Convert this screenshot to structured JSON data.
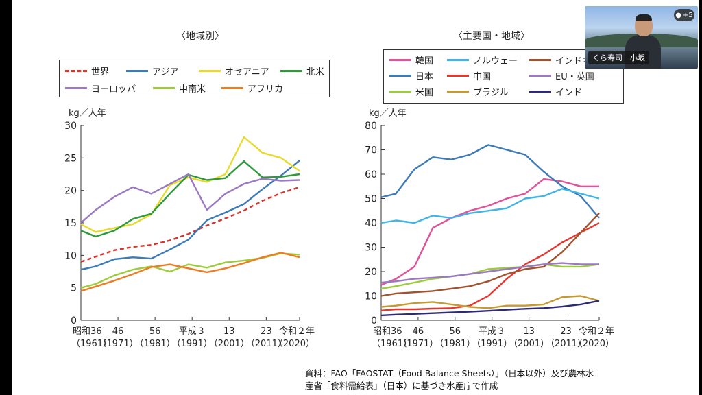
{
  "left_title": "〈地域別〉",
  "right_title": "〈主要国・地域〉",
  "ylabel": "kg／人年",
  "x_tick_top": [
    "昭和36",
    "46",
    "56",
    "平成３",
    "13",
    "23",
    "令和２年"
  ],
  "x_tick_bottom": [
    "（1961）",
    "（1971）",
    "（1981）",
    "（1991）",
    "（2001）",
    "（2011）",
    "（2020）"
  ],
  "source_line1": "資料：FAO「FAOSTAT（Food Balance Sheets）」（日本以外）及び農林水",
  "source_line2": "産省「食料需給表」（日本）に基づき水産庁で作成",
  "video": {
    "name": "くら寿司　小坂",
    "badge": "+5"
  },
  "chart_data": [
    {
      "type": "line",
      "title": "〈地域別〉",
      "ylabel": "kg／人年",
      "ylim": [
        0,
        30
      ],
      "yticks": [
        0,
        5,
        10,
        15,
        20,
        25,
        30
      ],
      "grid": false,
      "legend_placement": "top",
      "x": [
        1961,
        1965,
        1970,
        1975,
        1980,
        1985,
        1990,
        1995,
        2000,
        2005,
        2010,
        2015,
        2020
      ],
      "series": [
        {
          "name": "世界",
          "color": "#d9342b",
          "dashed": true,
          "values": [
            9.0,
            9.8,
            10.8,
            11.3,
            11.6,
            12.3,
            13.3,
            14.6,
            15.7,
            16.9,
            18.4,
            19.6,
            20.5
          ]
        },
        {
          "name": "アジア",
          "color": "#3d7ab8",
          "values": [
            7.8,
            8.3,
            9.4,
            9.7,
            9.5,
            10.9,
            12.4,
            15.4,
            16.6,
            17.9,
            20.2,
            22.3,
            24.6
          ]
        },
        {
          "name": "オセアニア",
          "color": "#e8d92a",
          "values": [
            14.8,
            13.6,
            14.2,
            14.8,
            16.3,
            20.8,
            22.0,
            21.3,
            22.5,
            28.2,
            25.8,
            25.0,
            23.0
          ]
        },
        {
          "name": "北米",
          "color": "#2e9a3a",
          "values": [
            13.8,
            12.9,
            13.8,
            15.6,
            16.4,
            19.5,
            22.4,
            21.6,
            21.9,
            24.5,
            22.0,
            22.1,
            22.5
          ]
        },
        {
          "name": "ヨーロッパ",
          "color": "#9a78c2",
          "values": [
            15.0,
            17.0,
            19.0,
            20.5,
            19.5,
            21.0,
            22.5,
            17.0,
            19.5,
            21.0,
            21.8,
            21.5,
            21.6
          ]
        },
        {
          "name": "中南米",
          "color": "#9ccc3a",
          "values": [
            5.0,
            5.6,
            6.9,
            7.8,
            8.3,
            7.5,
            8.6,
            8.1,
            8.9,
            9.2,
            9.6,
            10.3,
            10.1
          ]
        },
        {
          "name": "アフリカ",
          "color": "#ee7b22",
          "values": [
            4.5,
            5.2,
            6.1,
            7.1,
            8.2,
            8.6,
            8.0,
            7.4,
            8.0,
            8.8,
            9.7,
            10.4,
            9.7
          ]
        }
      ]
    },
    {
      "type": "line",
      "title": "〈主要国・地域〉",
      "ylabel": "kg／人年",
      "ylim": [
        0,
        80
      ],
      "yticks": [
        0,
        10,
        20,
        30,
        40,
        50,
        60,
        70,
        80
      ],
      "grid": false,
      "legend_placement": "top",
      "x": [
        1961,
        1965,
        1970,
        1975,
        1980,
        1985,
        1990,
        1995,
        2000,
        2005,
        2010,
        2015,
        2020
      ],
      "series": [
        {
          "name": "韓国",
          "color": "#e0529a",
          "values": [
            14.5,
            17.0,
            22.0,
            38.0,
            42.0,
            45.0,
            47.0,
            50.0,
            52.0,
            58.0,
            57.0,
            55.0,
            55.0
          ]
        },
        {
          "name": "日本",
          "color": "#3d7ab8",
          "values": [
            50.5,
            52.0,
            62.0,
            67.0,
            66.0,
            68.0,
            72.0,
            70.0,
            68.0,
            61.0,
            55.0,
            51.0,
            42.0
          ]
        },
        {
          "name": "米国",
          "color": "#9ccc3a",
          "values": [
            13.0,
            14.0,
            15.5,
            17.0,
            18.0,
            19.0,
            21.0,
            21.5,
            22.0,
            23.0,
            22.0,
            22.0,
            23.0
          ]
        },
        {
          "name": "ノルウェー",
          "color": "#41b4e6",
          "values": [
            40.0,
            41.0,
            40.0,
            43.0,
            42.0,
            44.0,
            45.0,
            46.0,
            50.0,
            51.0,
            54.0,
            52.0,
            50.0
          ]
        },
        {
          "name": "中国",
          "color": "#e8362d",
          "values": [
            4.0,
            4.5,
            4.5,
            4.8,
            5.0,
            6.0,
            10.0,
            17.0,
            23.0,
            27.0,
            32.0,
            36.0,
            40.0
          ]
        },
        {
          "name": "ブラジル",
          "color": "#c69a32",
          "values": [
            5.5,
            6.0,
            7.0,
            7.5,
            6.5,
            5.5,
            5.0,
            6.0,
            6.0,
            6.5,
            9.5,
            10.0,
            8.0
          ]
        },
        {
          "name": "インドネシア",
          "color": "#a0522d",
          "values": [
            10.0,
            11.0,
            11.5,
            12.0,
            13.0,
            14.0,
            16.0,
            19.0,
            21.0,
            22.0,
            28.0,
            36.0,
            44.0
          ]
        },
        {
          "name": "EU・英国",
          "color": "#9a78c2",
          "values": [
            15.5,
            16.0,
            17.0,
            17.5,
            18.0,
            19.0,
            20.0,
            21.0,
            22.0,
            23.0,
            23.5,
            23.0,
            23.0
          ]
        },
        {
          "name": "インド",
          "color": "#2e2a78",
          "values": [
            2.0,
            2.3,
            2.6,
            2.9,
            3.2,
            3.5,
            3.9,
            4.3,
            4.7,
            5.0,
            5.6,
            6.5,
            8.0
          ]
        }
      ]
    }
  ]
}
